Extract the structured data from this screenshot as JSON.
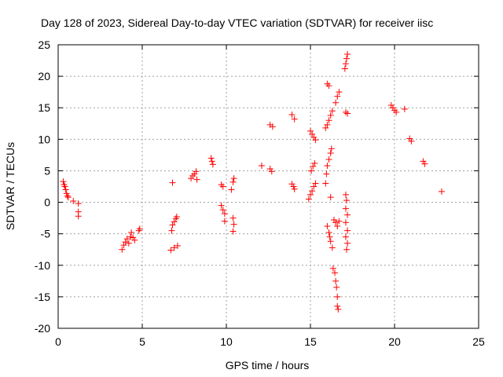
{
  "chart_data": {
    "type": "scatter",
    "title": "Day 128 of 2023, Sidereal Day-to-day VTEC variation (SDTVAR) for receiver iisc",
    "xlabel": "GPS time / hours",
    "ylabel": "SDTVAR / TECUs",
    "xlim": [
      0,
      25
    ],
    "ylim": [
      -20,
      25
    ],
    "x_ticks": [
      0,
      5,
      10,
      15,
      20,
      25
    ],
    "y_ticks": [
      -20,
      -15,
      -10,
      -5,
      0,
      5,
      10,
      15,
      20,
      25
    ],
    "grid": true,
    "marker": "+",
    "color": "#ff0000",
    "series": [
      {
        "name": "SDTVAR",
        "points": [
          [
            0.3,
            3.3
          ],
          [
            0.35,
            2.8
          ],
          [
            0.4,
            2.5
          ],
          [
            0.45,
            2.0
          ],
          [
            0.5,
            1.4
          ],
          [
            0.55,
            1.0
          ],
          [
            0.6,
            0.8
          ],
          [
            0.9,
            0.2
          ],
          [
            1.2,
            -0.2
          ],
          [
            1.2,
            -1.5
          ],
          [
            1.2,
            -2.2
          ],
          [
            3.8,
            -7.5
          ],
          [
            3.9,
            -6.8
          ],
          [
            4.0,
            -6.3
          ],
          [
            4.1,
            -5.8
          ],
          [
            4.2,
            -6.5
          ],
          [
            4.3,
            -5.5
          ],
          [
            4.35,
            -4.8
          ],
          [
            4.45,
            -5.6
          ],
          [
            4.55,
            -6.0
          ],
          [
            4.8,
            -4.5
          ],
          [
            4.85,
            -4.2
          ],
          [
            6.8,
            3.1
          ],
          [
            6.7,
            -7.6
          ],
          [
            6.9,
            -7.2
          ],
          [
            7.1,
            -6.9
          ],
          [
            6.75,
            -4.5
          ],
          [
            6.8,
            -3.6
          ],
          [
            6.9,
            -3.1
          ],
          [
            7.0,
            -2.6
          ],
          [
            7.05,
            -2.3
          ],
          [
            7.9,
            3.8
          ],
          [
            8.0,
            4.2
          ],
          [
            8.1,
            4.5
          ],
          [
            8.2,
            4.9
          ],
          [
            8.25,
            3.6
          ],
          [
            9.1,
            7.0
          ],
          [
            9.15,
            6.5
          ],
          [
            9.2,
            6.0
          ],
          [
            9.7,
            2.8
          ],
          [
            9.8,
            2.5
          ],
          [
            9.7,
            -0.5
          ],
          [
            9.8,
            -1.2
          ],
          [
            9.9,
            -1.8
          ],
          [
            9.9,
            -3.0
          ],
          [
            10.3,
            2.0
          ],
          [
            10.4,
            3.2
          ],
          [
            10.45,
            3.8
          ],
          [
            10.4,
            -2.5
          ],
          [
            10.45,
            -3.5
          ],
          [
            10.4,
            -4.6
          ],
          [
            12.1,
            5.8
          ],
          [
            12.6,
            5.3
          ],
          [
            12.7,
            4.9
          ],
          [
            12.6,
            12.3
          ],
          [
            12.75,
            12.0
          ],
          [
            13.9,
            2.9
          ],
          [
            14.0,
            2.5
          ],
          [
            14.05,
            2.1
          ],
          [
            13.9,
            13.9
          ],
          [
            14.05,
            13.2
          ],
          [
            14.9,
            0.5
          ],
          [
            15.0,
            1.2
          ],
          [
            15.1,
            1.8
          ],
          [
            15.2,
            2.5
          ],
          [
            15.3,
            3.0
          ],
          [
            15.0,
            11.3
          ],
          [
            15.1,
            10.8
          ],
          [
            15.2,
            10.3
          ],
          [
            15.3,
            9.9
          ],
          [
            15.05,
            5.0
          ],
          [
            15.15,
            5.7
          ],
          [
            15.25,
            6.2
          ],
          [
            15.9,
            3.0
          ],
          [
            15.95,
            4.5
          ],
          [
            16.0,
            5.8
          ],
          [
            16.1,
            6.8
          ],
          [
            16.2,
            7.8
          ],
          [
            16.25,
            8.5
          ],
          [
            15.9,
            11.8
          ],
          [
            16.0,
            12.3
          ],
          [
            16.1,
            13.0
          ],
          [
            16.2,
            13.8
          ],
          [
            16.3,
            14.5
          ],
          [
            16.5,
            15.8
          ],
          [
            16.6,
            16.8
          ],
          [
            16.7,
            17.5
          ],
          [
            16.0,
            18.8
          ],
          [
            16.1,
            18.5
          ],
          [
            16.0,
            -3.8
          ],
          [
            16.1,
            -4.8
          ],
          [
            16.15,
            -5.5
          ],
          [
            16.2,
            -6.2
          ],
          [
            16.3,
            -7.2
          ],
          [
            16.2,
            0.8
          ],
          [
            16.4,
            -2.8
          ],
          [
            16.5,
            -3.2
          ],
          [
            16.6,
            -3.8
          ],
          [
            16.7,
            -3.0
          ],
          [
            16.35,
            -10.5
          ],
          [
            16.45,
            -11.2
          ],
          [
            16.5,
            -12.5
          ],
          [
            16.55,
            -13.5
          ],
          [
            16.6,
            -15.0
          ],
          [
            16.6,
            -16.5
          ],
          [
            16.65,
            -17.0
          ],
          [
            17.05,
            21.2
          ],
          [
            17.1,
            22.0
          ],
          [
            17.15,
            22.8
          ],
          [
            17.2,
            23.5
          ],
          [
            17.1,
            14.3
          ],
          [
            17.2,
            14.1
          ],
          [
            17.1,
            1.2
          ],
          [
            17.15,
            0.3
          ],
          [
            17.1,
            -1.0
          ],
          [
            17.2,
            -2.0
          ],
          [
            17.1,
            -3.2
          ],
          [
            17.2,
            -4.5
          ],
          [
            17.1,
            -5.5
          ],
          [
            17.2,
            -6.5
          ],
          [
            17.15,
            -7.5
          ],
          [
            19.8,
            15.4
          ],
          [
            19.9,
            15.0
          ],
          [
            20.0,
            14.6
          ],
          [
            20.1,
            14.3
          ],
          [
            20.6,
            14.8
          ],
          [
            20.9,
            10.1
          ],
          [
            21.0,
            9.7
          ],
          [
            21.7,
            6.5
          ],
          [
            21.8,
            6.1
          ],
          [
            22.8,
            1.7
          ]
        ]
      }
    ]
  }
}
